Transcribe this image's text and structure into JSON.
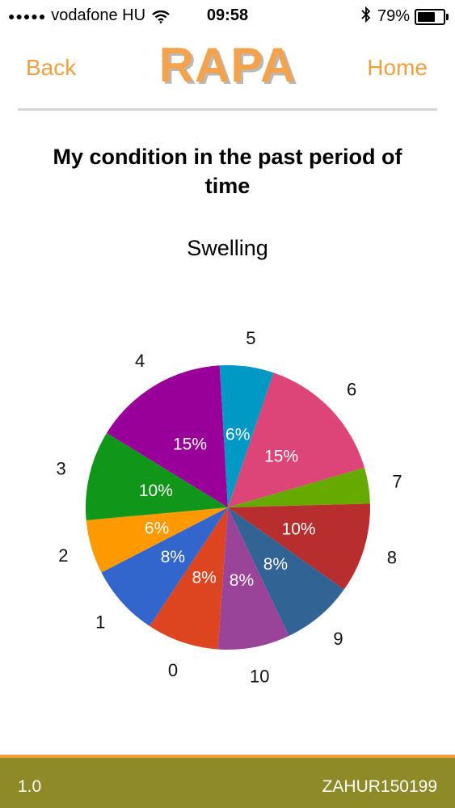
{
  "status_bar": {
    "signal_dots": "●●●●●",
    "carrier": "vodafone HU",
    "time": "09:58",
    "battery_text": "79%",
    "battery_level": 0.79,
    "bluetooth_icon": "bluetooth-icon",
    "wifi_icon": "wifi-icon"
  },
  "nav": {
    "back_label": "Back",
    "logo_text": "RAPA",
    "home_label": "Home"
  },
  "page_title": "My condition in the past period of time",
  "colors": {
    "accent": "#f0a040",
    "footer_bg": "#8e8a28",
    "footer_border": "#f09a3a"
  },
  "chart_data": {
    "type": "pie",
    "title": "Swelling",
    "categories": [
      "0",
      "1",
      "2",
      "3",
      "4",
      "5",
      "6",
      "7",
      "8",
      "9",
      "10"
    ],
    "values": [
      8,
      8,
      6,
      10,
      15,
      6,
      15,
      4,
      10,
      8,
      8
    ],
    "labels": [
      "8%",
      "8%",
      "6%",
      "10%",
      "15%",
      "6%",
      "15%",
      "",
      "10%",
      "8%",
      "8%"
    ],
    "colors": [
      "#dd4420",
      "#3366cc",
      "#ff9900",
      "#109618",
      "#990099",
      "#0099c6",
      "#dd4477",
      "#66aa00",
      "#b82e2e",
      "#316395",
      "#994499"
    ]
  },
  "footer": {
    "version": "1.0",
    "user_id": "ZAHUR150199"
  }
}
